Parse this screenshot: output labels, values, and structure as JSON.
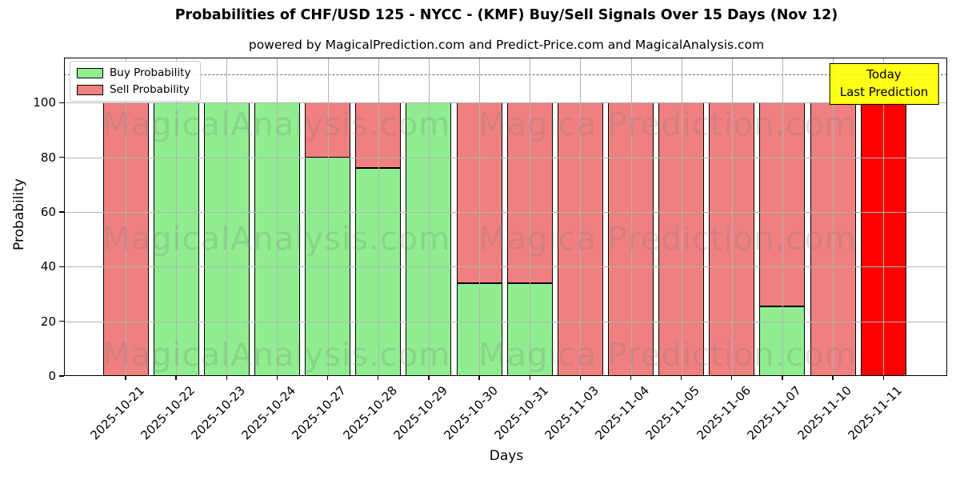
{
  "chart_data": {
    "type": "bar",
    "stacked": true,
    "title": "Probabilities of CHF/USD 125 - NYCC -  (KMF) Buy/Sell Signals Over 15 Days (Nov 12)",
    "subtitle": "powered by MagicalPrediction.com and Predict-Price.com and MagicalAnalysis.com",
    "xlabel": "Days",
    "ylabel": "Probability",
    "categories": [
      "2025-10-21",
      "2025-10-22",
      "2025-10-23",
      "2025-10-24",
      "2025-10-27",
      "2025-10-28",
      "2025-10-29",
      "2025-10-30",
      "2025-10-31",
      "2025-11-03",
      "2025-11-04",
      "2025-11-05",
      "2025-11-06",
      "2025-11-07",
      "2025-11-10",
      "2025-11-11"
    ],
    "series": [
      {
        "name": "Buy Probability",
        "color": "#90ee90",
        "values": [
          0,
          100,
          100,
          100,
          80,
          76,
          100,
          34,
          34,
          0,
          0,
          0,
          0,
          25.5,
          0,
          0
        ]
      },
      {
        "name": "Sell Probability",
        "color": "#f08080",
        "values": [
          100,
          0,
          0,
          0,
          20,
          24,
          0,
          66,
          66,
          100,
          100,
          100,
          100,
          74.5,
          100,
          100
        ]
      }
    ],
    "yticks": [
      0,
      20,
      40,
      60,
      80,
      100
    ],
    "ylim": [
      0,
      116.5
    ],
    "dashed_line_y": 110,
    "grid": true,
    "legend_position": "upper left",
    "today_index": 15,
    "today_color": "#ff0000"
  },
  "annotation": {
    "line1": "Today",
    "line2": "Last Prediction",
    "bg": "#ffff00"
  },
  "watermarks": {
    "left": "MagicalAnalysis.com",
    "right": "Magica Prediction.com"
  }
}
